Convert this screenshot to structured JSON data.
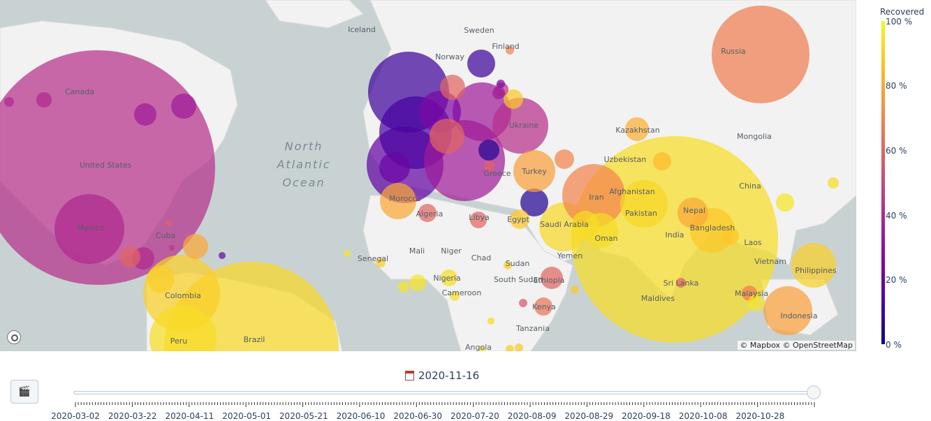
{
  "map": {
    "attribution": "© Mapbox © OpenStreetMap",
    "ocean_label": [
      "North",
      "Atlantic",
      "Ocean"
    ],
    "country_labels": [
      "Iceland",
      "Sweden",
      "Finland",
      "Norway",
      "Russia",
      "Canada",
      "Kazakhstan",
      "Mongolia",
      "Ukraine",
      "Uzbekistan",
      "Turkey",
      "United States",
      "China",
      "Iran",
      "Afghanistan",
      "Pakistan",
      "Morocco",
      "Algeria",
      "Libya",
      "Egypt",
      "Saudi Arabia",
      "Oman",
      "Nepal",
      "Bangladesh",
      "India",
      "Laos",
      "Mexico",
      "Cuba",
      "Mali",
      "Niger",
      "Chad",
      "Sudan",
      "Senegal",
      "Yemen",
      "Vietnam",
      "Philippines",
      "Nigeria",
      "Ethiopia",
      "South Sudan",
      "Cameroon",
      "Sri Lanka",
      "Colombia",
      "Kenya",
      "Malaysia",
      "Maldives",
      "Indonesia",
      "Peru",
      "Brazil",
      "Tanzania",
      "Angola",
      "Greece"
    ]
  },
  "colorbar": {
    "title": "Recovered",
    "ticks": [
      "100 %",
      "80 %",
      "60 %",
      "40 %",
      "20 %",
      "0 %"
    ],
    "colors": [
      "#0d0887",
      "#5302a3",
      "#8b0aa5",
      "#b83289",
      "#db5c68",
      "#f48849",
      "#febd2a",
      "#f0f921"
    ]
  },
  "animation": {
    "play_icon": "clapper-board-icon",
    "current_date": "2020-11-16",
    "calendar_icon": "calendar-icon",
    "progress": 1.0,
    "tick_labels": [
      "2020-03-02",
      "2020-03-22",
      "2020-04-11",
      "2020-05-01",
      "2020-05-21",
      "2020-06-10",
      "2020-06-30",
      "2020-07-20",
      "2020-08-09",
      "2020-08-29",
      "2020-09-18",
      "2020-10-08",
      "2020-10-28"
    ]
  }
}
